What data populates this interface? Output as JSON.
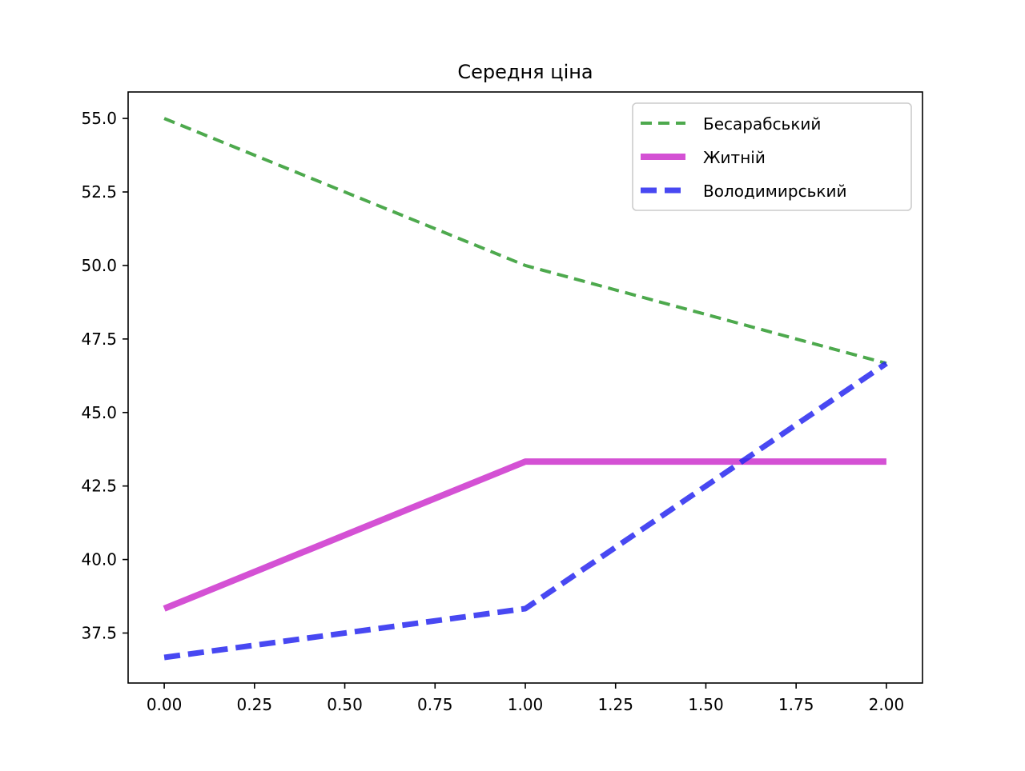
{
  "chart_data": {
    "type": "line",
    "title": "Середня ціна",
    "xlabel": "",
    "ylabel": "",
    "x": [
      0,
      1,
      2
    ],
    "xlim": [
      -0.1,
      2.1
    ],
    "ylim": [
      35.8,
      55.9
    ],
    "x_ticks": [
      "0.00",
      "0.25",
      "0.50",
      "0.75",
      "1.00",
      "1.25",
      "1.50",
      "1.75",
      "2.00"
    ],
    "y_ticks": [
      "37.5",
      "40.0",
      "42.5",
      "45.0",
      "47.5",
      "50.0",
      "52.5",
      "55.0"
    ],
    "grid": false,
    "legend_position": "top-right",
    "series": [
      {
        "name": "Бесарабський",
        "values": [
          55.0,
          50.0,
          46.67
        ],
        "color": "#2e9a2e",
        "style": "dashed"
      },
      {
        "name": "Житній",
        "values": [
          38.33,
          43.33,
          43.33
        ],
        "color": "#cc33cc",
        "style": "solid"
      },
      {
        "name": "Володимирський",
        "values": [
          36.67,
          38.33,
          46.67
        ],
        "color": "#2828f0",
        "style": "dashed"
      }
    ]
  }
}
